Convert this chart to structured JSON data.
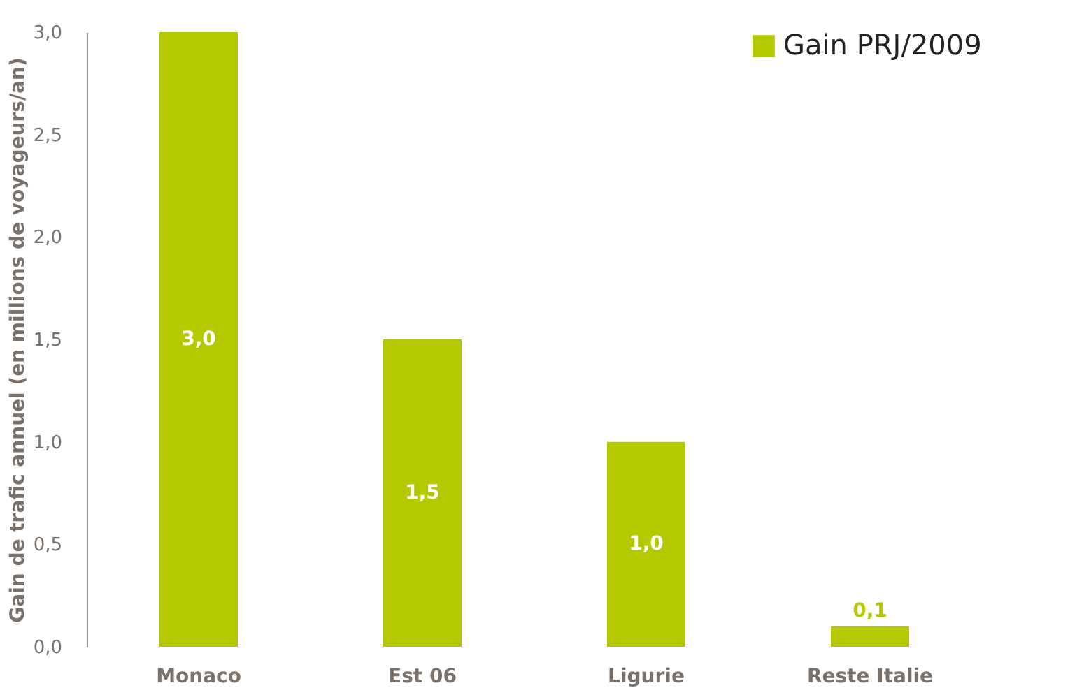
{
  "chart_data": {
    "type": "bar",
    "ylabel": "Gain de trafic annuel (en millions de voyageurs/an)",
    "categories": [
      "Monaco",
      "Est 06",
      "Ligurie",
      "Reste Italie"
    ],
    "series": [
      {
        "name": "Gain PRJ/2009",
        "color": "#b5c900",
        "values": [
          3.0,
          1.5,
          1.0,
          0.1
        ],
        "value_labels": [
          "3,0",
          "1,5",
          "1,0",
          "0,1"
        ]
      }
    ],
    "ylim": [
      0,
      3
    ],
    "yticks": [
      {
        "value": 0,
        "label": "0,0"
      },
      {
        "value": 0.5,
        "label": "0,5"
      },
      {
        "value": 1,
        "label": "1,0"
      },
      {
        "value": 1.5,
        "label": "1,5"
      },
      {
        "value": 2,
        "label": "2,0"
      },
      {
        "value": 2.5,
        "label": "2,5"
      },
      {
        "value": 3,
        "label": "3,0"
      }
    ],
    "grid": false,
    "legend": "top right"
  }
}
